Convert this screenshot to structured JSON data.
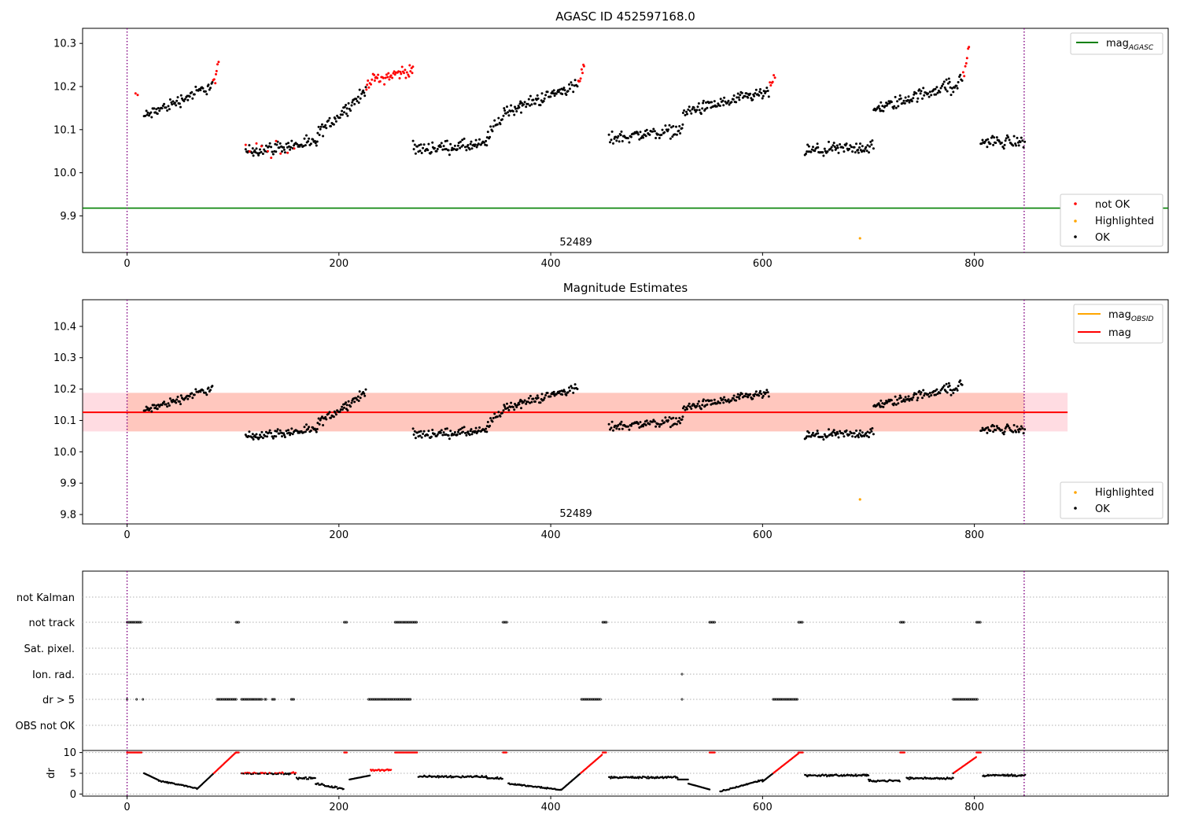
{
  "chart_data": [
    {
      "type": "scatter",
      "title": "AGASC ID 452597168.0",
      "xlim": [
        -42,
        983
      ],
      "ylim": [
        9.815,
        10.335
      ],
      "xticks": [
        0,
        200,
        400,
        600,
        800
      ],
      "yticks": [
        9.9,
        10.0,
        10.1,
        10.2,
        10.3
      ],
      "vlines": [
        0,
        847
      ],
      "hlines": [
        {
          "name": "mag_AGASC",
          "y": 9.918,
          "color": "#008000"
        }
      ],
      "obsid_label": {
        "text": "52489",
        "x": 423,
        "y": 9.832
      },
      "line_legend": [
        {
          "base": "mag",
          "sub": "AGASC",
          "color": "#008000"
        }
      ],
      "point_legend": [
        {
          "label": "not OK",
          "color": "#ff0000"
        },
        {
          "label": "Highlighted",
          "color": "#ffa500"
        },
        {
          "label": "OK",
          "color": "#000000"
        }
      ],
      "highlighted_points": [
        [
          692,
          9.848
        ]
      ]
    },
    {
      "type": "scatter",
      "title": "Magnitude Estimates",
      "xlim": [
        -42,
        983
      ],
      "ylim": [
        9.77,
        10.485
      ],
      "xticks": [
        0,
        200,
        400,
        600,
        800
      ],
      "yticks": [
        9.8,
        9.9,
        10.0,
        10.1,
        10.2,
        10.3,
        10.4
      ],
      "vlines": [
        0,
        847
      ],
      "mag_line": {
        "y": 10.126,
        "x_range": [
          -42,
          888
        ],
        "band": [
          10.065,
          10.188
        ]
      },
      "obsid_label": {
        "text": "52489",
        "x": 423,
        "y": 9.793
      },
      "line_legend": [
        {
          "base": "mag",
          "sub": "OBSID",
          "color": "#ffa500"
        },
        {
          "base": "mag",
          "sub": "",
          "color": "#ff0000"
        }
      ],
      "point_legend": [
        {
          "label": "Highlighted",
          "color": "#ffa500"
        },
        {
          "label": "OK",
          "color": "#000000"
        }
      ],
      "highlighted_points": [
        [
          692,
          9.848
        ]
      ]
    },
    {
      "type": "scatter",
      "flag_labels": [
        "not Kalman",
        "not track",
        "Sat. pixel.",
        "Ion. rad.",
        "dr > 5",
        "OBS not OK"
      ],
      "flag_segments": {
        "not track": [
          [
            0,
            14
          ],
          [
            103,
            106
          ],
          [
            205,
            208
          ],
          [
            253,
            274
          ],
          [
            355,
            359
          ],
          [
            449,
            453
          ],
          [
            550,
            555
          ],
          [
            634,
            638
          ],
          [
            730,
            734
          ],
          [
            802,
            806
          ]
        ],
        "Ion. rad.": [
          [
            524,
            524
          ]
        ],
        "dr > 5": [
          [
            0,
            1
          ],
          [
            9,
            10
          ],
          [
            15,
            16
          ],
          [
            85,
            104
          ],
          [
            108,
            128
          ],
          [
            130,
            132
          ],
          [
            137,
            140
          ],
          [
            155,
            158
          ],
          [
            228,
            268
          ],
          [
            429,
            448
          ],
          [
            524,
            524
          ],
          [
            610,
            634
          ],
          [
            780,
            803
          ]
        ]
      },
      "dr_ylabel": "dr",
      "dr_ylim": [
        -0.5,
        10.5
      ],
      "dr_yticks": [
        0,
        5,
        10
      ],
      "xticks": [
        0,
        200,
        400,
        600,
        800
      ],
      "xlim": [
        -42,
        983
      ],
      "vlines": [
        0,
        847
      ]
    }
  ]
}
